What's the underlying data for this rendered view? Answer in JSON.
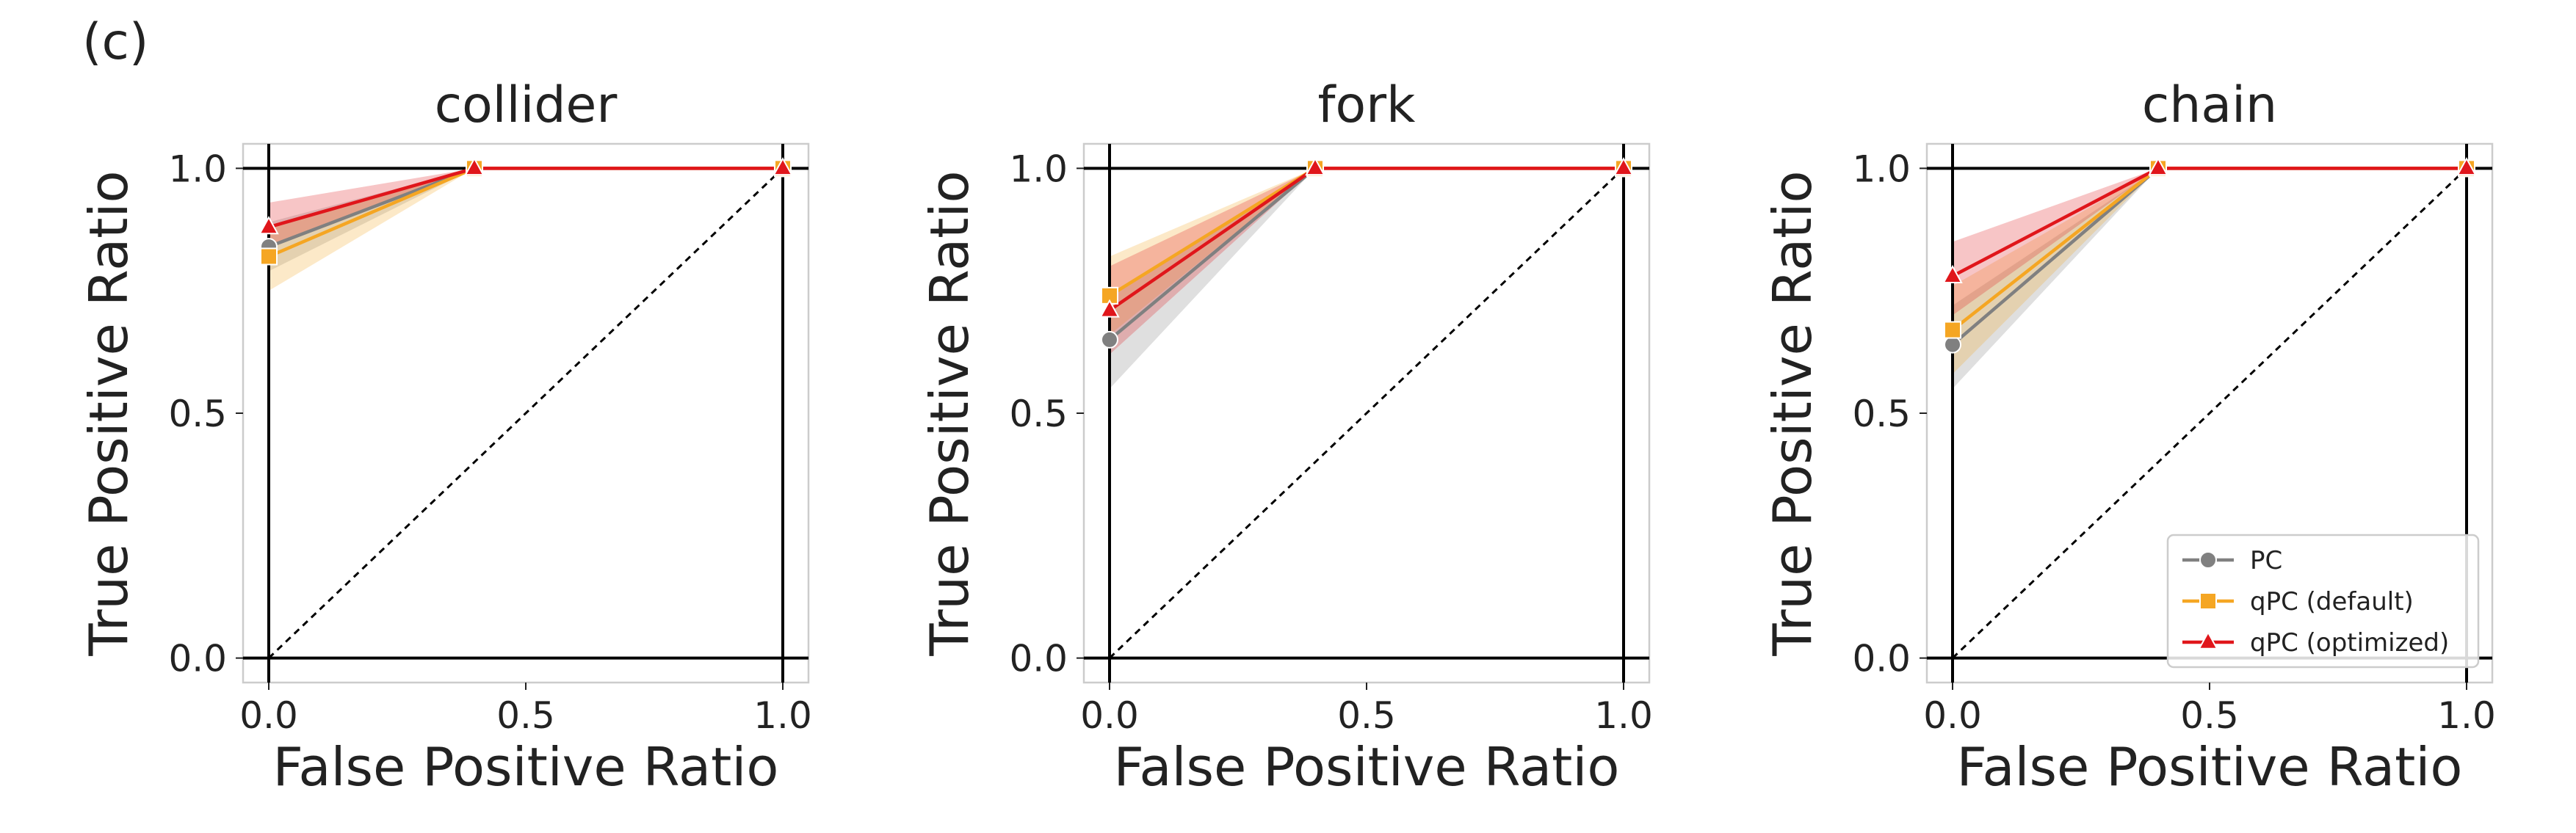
{
  "panel_label": "(c)",
  "chart_data": [
    {
      "type": "line",
      "title": "collider",
      "x_label": "False Positive Ratio",
      "y_label": "True Positive Ratio",
      "x": [
        0,
        0.4,
        1
      ],
      "series": [
        {
          "name": "PC",
          "color": "#808080",
          "marker": "circle",
          "values": [
            0.84,
            1,
            1
          ],
          "ci_low": [
            0.79,
            1,
            1
          ],
          "ci_high": [
            0.89,
            1,
            1
          ]
        },
        {
          "name": "qPC (default)",
          "color": "#f5a623",
          "marker": "square",
          "values": [
            0.82,
            1,
            1
          ],
          "ci_low": [
            0.75,
            1,
            1
          ],
          "ci_high": [
            0.88,
            1,
            1
          ]
        },
        {
          "name": "qPC (optimized)",
          "color": "#e0161b",
          "marker": "triangle",
          "values": [
            0.88,
            1,
            1
          ],
          "ci_low": [
            0.84,
            1,
            1
          ],
          "ci_high": [
            0.93,
            1,
            1
          ]
        }
      ],
      "xlim": [
        -0.05,
        1.05
      ],
      "ylim": [
        -0.05,
        1.05
      ],
      "xticks": [
        {
          "value": 0,
          "label": "0.0"
        },
        0.5,
        {
          "value": 1,
          "label": "1.0"
        }
      ],
      "yticks": [
        {
          "value": 0,
          "label": "0.0"
        },
        0.5,
        {
          "value": 1,
          "label": "1.0"
        }
      ],
      "hlines": [
        0,
        1
      ],
      "vlines": [
        0,
        1
      ],
      "diagonal": true
    },
    {
      "type": "line",
      "title": "fork",
      "x_label": "False Positive Ratio",
      "y_label": "True Positive Ratio",
      "x": [
        0,
        0.4,
        1
      ],
      "series": [
        {
          "name": "PC",
          "color": "#808080",
          "marker": "circle",
          "values": [
            0.65,
            1,
            1
          ],
          "ci_low": [
            0.55,
            1,
            1
          ],
          "ci_high": [
            0.74,
            1,
            1
          ]
        },
        {
          "name": "qPC (default)",
          "color": "#f5a623",
          "marker": "square",
          "values": [
            0.74,
            1,
            1
          ],
          "ci_low": [
            0.66,
            1,
            1
          ],
          "ci_high": [
            0.82,
            1,
            1
          ]
        },
        {
          "name": "qPC (optimized)",
          "color": "#e0161b",
          "marker": "triangle",
          "values": [
            0.71,
            1,
            1
          ],
          "ci_low": [
            0.62,
            1,
            1
          ],
          "ci_high": [
            0.8,
            1,
            1
          ]
        }
      ],
      "xlim": [
        -0.05,
        1.05
      ],
      "ylim": [
        -0.05,
        1.05
      ],
      "xticks": [
        {
          "value": 0,
          "label": "0.0"
        },
        0.5,
        {
          "value": 1,
          "label": "1.0"
        }
      ],
      "yticks": [
        {
          "value": 0,
          "label": "0.0"
        },
        0.5,
        {
          "value": 1,
          "label": "1.0"
        }
      ],
      "hlines": [
        0,
        1
      ],
      "vlines": [
        0,
        1
      ],
      "diagonal": true
    },
    {
      "type": "line",
      "title": "chain",
      "x_label": "False Positive Ratio",
      "y_label": "True Positive Ratio",
      "x": [
        0,
        0.4,
        1
      ],
      "series": [
        {
          "name": "PC",
          "color": "#808080",
          "marker": "circle",
          "values": [
            0.64,
            1,
            1
          ],
          "ci_low": [
            0.55,
            1,
            1
          ],
          "ci_high": [
            0.72,
            1,
            1
          ]
        },
        {
          "name": "qPC (default)",
          "color": "#f5a623",
          "marker": "square",
          "values": [
            0.67,
            1,
            1
          ],
          "ci_low": [
            0.58,
            1,
            1
          ],
          "ci_high": [
            0.76,
            1,
            1
          ]
        },
        {
          "name": "qPC (optimized)",
          "color": "#e0161b",
          "marker": "triangle",
          "values": [
            0.78,
            1,
            1
          ],
          "ci_low": [
            0.7,
            1,
            1
          ],
          "ci_high": [
            0.85,
            1,
            1
          ]
        }
      ],
      "xlim": [
        -0.05,
        1.05
      ],
      "ylim": [
        -0.05,
        1.05
      ],
      "xticks": [
        {
          "value": 0,
          "label": "0.0"
        },
        0.5,
        {
          "value": 1,
          "label": "1.0"
        }
      ],
      "yticks": [
        {
          "value": 0,
          "label": "0.0"
        },
        0.5,
        {
          "value": 1,
          "label": "1.0"
        }
      ],
      "hlines": [
        0,
        1
      ],
      "vlines": [
        0,
        1
      ],
      "diagonal": true,
      "legend": "lower right"
    }
  ]
}
